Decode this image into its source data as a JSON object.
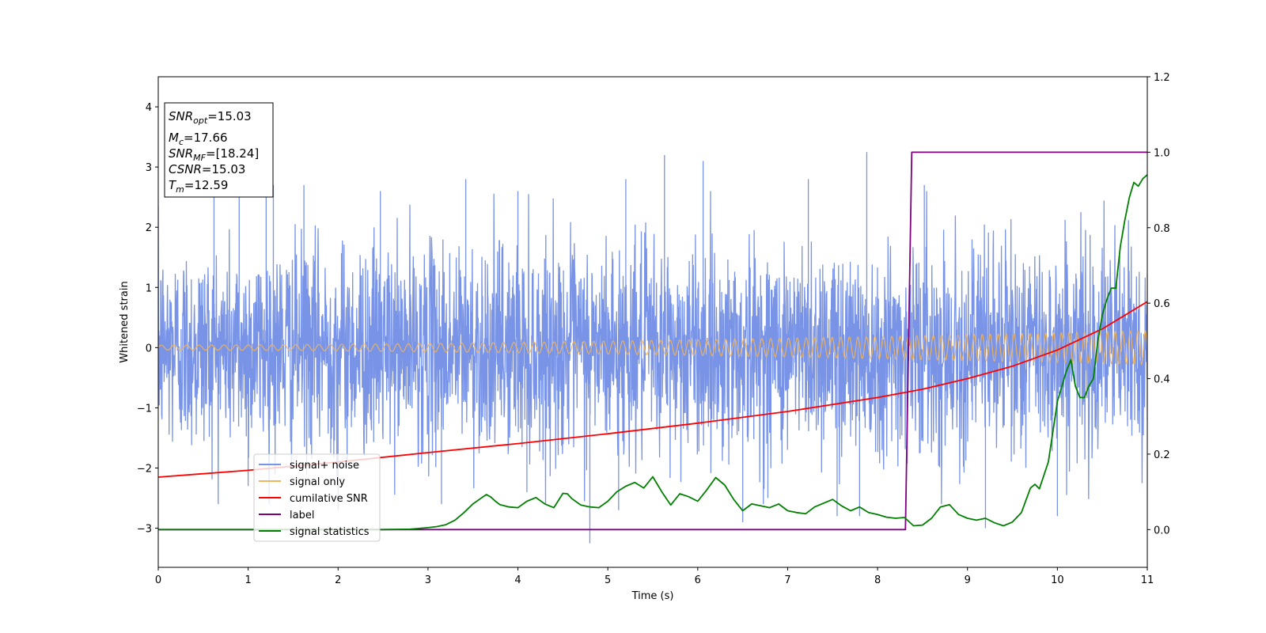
{
  "chart_data": {
    "type": "line",
    "xlabel": "Time (s)",
    "ylabel": "Whitened strain",
    "xlim": [
      0,
      11
    ],
    "ylim": [
      -3.65,
      4.5
    ],
    "y2lim": [
      -0.1,
      1.2
    ],
    "x_ticks": [
      "0",
      "1",
      "2",
      "3",
      "4",
      "5",
      "6",
      "7",
      "8",
      "9",
      "10",
      "11"
    ],
    "y_ticks": [
      "-3",
      "-2",
      "-1",
      "0",
      "1",
      "2",
      "3",
      "4"
    ],
    "y2_ticks": [
      "0.0",
      "0.2",
      "0.4",
      "0.6",
      "0.8",
      "1.0",
      "1.2"
    ],
    "grid": false,
    "legend_position": "lower-left",
    "stats_box": [
      {
        "var": "SNR",
        "sub": "opt",
        "value": "=15.03"
      },
      {
        "var": "M",
        "sub": "c",
        "value": "=17.66"
      },
      {
        "var": "SNR",
        "sub": "MF",
        "value": "=[18.24]"
      },
      {
        "var": "CSNR",
        "sub": "",
        "value": "=15.03"
      },
      {
        "var": "T",
        "sub": "m",
        "value": "=12.59"
      }
    ],
    "series": [
      {
        "name": "signal+ noise",
        "color": "#7994e6",
        "axis": "left",
        "noise_std": 0.85,
        "spikes": [
          [
            0.62,
            2.7
          ],
          [
            0.9,
            2.6
          ],
          [
            1.2,
            2.5
          ],
          [
            1.28,
            2.7
          ],
          [
            1.62,
            2.7
          ],
          [
            2.47,
            2.6
          ],
          [
            3.42,
            2.8
          ],
          [
            4.0,
            2.6
          ],
          [
            5.2,
            2.8
          ],
          [
            5.63,
            3.2
          ],
          [
            6.06,
            3.1
          ],
          [
            7.23,
            2.8
          ],
          [
            7.88,
            3.25
          ],
          [
            8.52,
            2.7
          ],
          [
            1.0,
            -2.3
          ],
          [
            2.0,
            -2.7
          ],
          [
            3.15,
            -2.6
          ],
          [
            4.1,
            -2.4
          ],
          [
            4.8,
            -3.25
          ],
          [
            5.12,
            -2.7
          ],
          [
            6.5,
            -2.9
          ],
          [
            6.78,
            -2.5
          ],
          [
            7.55,
            -2.8
          ],
          [
            7.8,
            -2.8
          ],
          [
            9.2,
            -3.0
          ],
          [
            10.0,
            -2.8
          ],
          [
            11.0,
            -1.2
          ]
        ]
      },
      {
        "name": "signal only",
        "color": "#f0b45c",
        "axis": "left",
        "amp_start": 0.04,
        "amp_end": 0.28,
        "freq_start": 7.0,
        "freq_end": 12.0
      },
      {
        "name": "cumilative SNR",
        "color": "#ff0000",
        "axis": "right",
        "x": [
          0,
          1,
          2,
          3,
          4,
          5,
          6,
          7,
          8,
          8.5,
          9,
          9.5,
          10,
          10.5,
          11
        ],
        "y": [
          0.139,
          0.157,
          0.179,
          0.204,
          0.228,
          0.254,
          0.282,
          0.313,
          0.35,
          0.372,
          0.4,
          0.433,
          0.476,
          0.532,
          0.604
        ]
      },
      {
        "name": "label",
        "color": "#800080",
        "axis": "right",
        "x": [
          0,
          8.31,
          8.38,
          11
        ],
        "y": [
          0,
          0,
          1,
          1
        ]
      },
      {
        "name": "signal statistics",
        "color": "#008000",
        "axis": "right",
        "x": [
          0,
          0.5,
          1,
          1.5,
          2,
          2.5,
          2.8,
          3.0,
          3.1,
          3.2,
          3.3,
          3.4,
          3.5,
          3.6,
          3.65,
          3.7,
          3.75,
          3.8,
          3.9,
          4.0,
          4.1,
          4.2,
          4.3,
          4.35,
          4.4,
          4.5,
          4.55,
          4.6,
          4.7,
          4.8,
          4.9,
          5.0,
          5.1,
          5.2,
          5.3,
          5.4,
          5.5,
          5.6,
          5.7,
          5.8,
          5.9,
          6.0,
          6.1,
          6.2,
          6.3,
          6.4,
          6.5,
          6.6,
          6.7,
          6.8,
          6.9,
          7.0,
          7.1,
          7.2,
          7.3,
          7.4,
          7.5,
          7.6,
          7.7,
          7.8,
          7.9,
          8.0,
          8.1,
          8.2,
          8.3,
          8.4,
          8.5,
          8.6,
          8.7,
          8.8,
          8.9,
          9.0,
          9.1,
          9.2,
          9.3,
          9.4,
          9.5,
          9.6,
          9.7,
          9.75,
          9.8,
          9.9,
          10.0,
          10.05,
          10.1,
          10.15,
          10.2,
          10.25,
          10.3,
          10.35,
          10.4,
          10.45,
          10.5,
          10.55,
          10.6,
          10.65,
          10.7,
          10.75,
          10.8,
          10.85,
          10.9,
          10.95,
          11.0
        ],
        "y": [
          0.0,
          0.0,
          0.0,
          0.0,
          0.0,
          0.0,
          0.001,
          0.005,
          0.008,
          0.013,
          0.025,
          0.045,
          0.068,
          0.085,
          0.093,
          0.086,
          0.075,
          0.066,
          0.06,
          0.058,
          0.075,
          0.085,
          0.068,
          0.063,
          0.058,
          0.096,
          0.095,
          0.082,
          0.065,
          0.06,
          0.058,
          0.075,
          0.1,
          0.115,
          0.125,
          0.11,
          0.14,
          0.1,
          0.065,
          0.095,
          0.087,
          0.075,
          0.105,
          0.138,
          0.118,
          0.08,
          0.05,
          0.068,
          0.063,
          0.058,
          0.068,
          0.05,
          0.045,
          0.042,
          0.06,
          0.07,
          0.08,
          0.063,
          0.05,
          0.06,
          0.045,
          0.04,
          0.033,
          0.03,
          0.032,
          0.01,
          0.012,
          0.03,
          0.06,
          0.066,
          0.04,
          0.03,
          0.025,
          0.03,
          0.018,
          0.01,
          0.02,
          0.045,
          0.11,
          0.12,
          0.108,
          0.18,
          0.34,
          0.38,
          0.42,
          0.45,
          0.38,
          0.35,
          0.35,
          0.38,
          0.4,
          0.5,
          0.57,
          0.61,
          0.64,
          0.64,
          0.75,
          0.82,
          0.88,
          0.92,
          0.91,
          0.93,
          0.94
        ]
      }
    ]
  }
}
